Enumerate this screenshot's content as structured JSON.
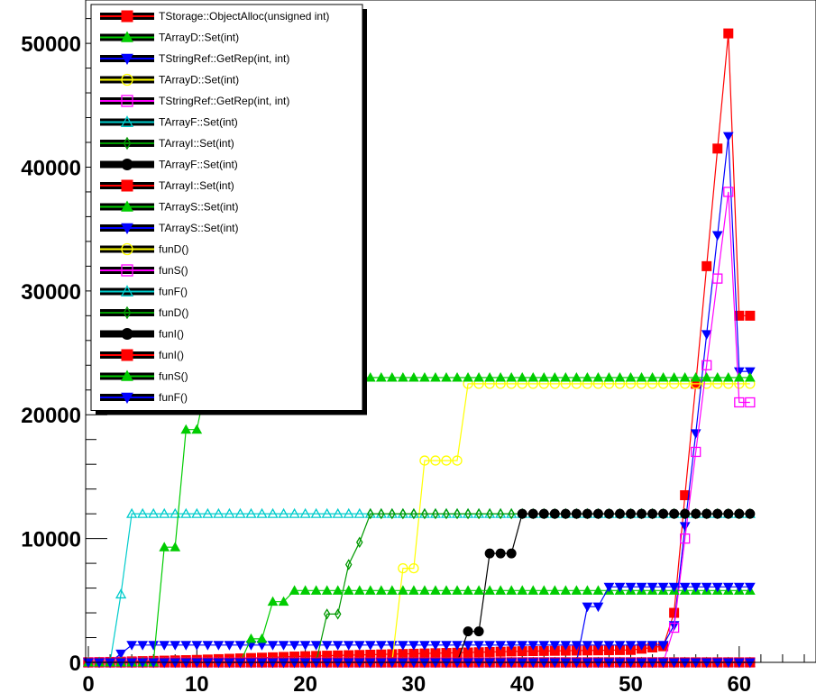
{
  "chart_data": {
    "type": "line",
    "title": "",
    "xlabel": "",
    "ylabel": "",
    "xlim": [
      0,
      66
    ],
    "ylim": [
      0,
      53500
    ],
    "x_ticks": [
      0,
      10,
      20,
      30,
      40,
      50,
      60
    ],
    "y_ticks": [
      0,
      10000,
      20000,
      30000,
      40000,
      50000
    ],
    "x_tick_labels": [
      "0",
      "10",
      "20",
      "30",
      "40",
      "50",
      "60"
    ],
    "y_tick_labels": [
      "0",
      "10000",
      "20000",
      "30000",
      "40000",
      "50000"
    ],
    "grid": false,
    "legend_position": "top-left",
    "series": [
      {
        "name": "TStorage::ObjectAlloc(unsigned int)",
        "color": "#ff0000",
        "marker": "square-filled",
        "points": [
          [
            0,
            0
          ],
          [
            10,
            200
          ],
          [
            20,
            500
          ],
          [
            30,
            700
          ],
          [
            40,
            900
          ],
          [
            50,
            1000
          ],
          [
            53,
            1300
          ],
          [
            54,
            4000
          ],
          [
            55,
            13500
          ],
          [
            56,
            22500
          ],
          [
            57,
            32000
          ],
          [
            58,
            41500
          ],
          [
            59,
            50800
          ],
          [
            60,
            28000
          ],
          [
            61,
            28000
          ]
        ]
      },
      {
        "name": "TArrayD::Set(int)",
        "color": "#00cc00",
        "marker": "triangle-up-filled",
        "points": [
          [
            0,
            0
          ],
          [
            61,
            0
          ]
        ]
      },
      {
        "name": "TStringRef::GetRep(int, int)",
        "color": "#0000ff",
        "marker": "triangle-down-filled",
        "points": [
          [
            0,
            0
          ],
          [
            2,
            0
          ],
          [
            3,
            700
          ],
          [
            4,
            1400
          ],
          [
            53,
            1400
          ],
          [
            54,
            3000
          ],
          [
            55,
            11000
          ],
          [
            56,
            18500
          ],
          [
            57,
            26500
          ],
          [
            58,
            34500
          ],
          [
            59,
            42500
          ],
          [
            60,
            23500
          ],
          [
            61,
            23500
          ]
        ]
      },
      {
        "name": "TArrayD::Set(int)",
        "color": "#ffff00",
        "marker": "circle-open",
        "points": [
          [
            0,
            0
          ],
          [
            28,
            0
          ],
          [
            29,
            7600
          ],
          [
            30,
            7600
          ],
          [
            31,
            16300
          ],
          [
            34,
            16300
          ],
          [
            35,
            22500
          ],
          [
            61,
            22500
          ]
        ]
      },
      {
        "name": "TStringRef::GetRep(int, int)",
        "color": "#ff00ff",
        "marker": "square-open",
        "points": [
          [
            0,
            0
          ],
          [
            53,
            0
          ],
          [
            54,
            2800
          ],
          [
            55,
            10000
          ],
          [
            56,
            17000
          ],
          [
            57,
            24000
          ],
          [
            58,
            31000
          ],
          [
            59,
            38000
          ],
          [
            60,
            21000
          ],
          [
            61,
            21000
          ]
        ]
      },
      {
        "name": "TArrayF::Set(int)",
        "color": "#00cccc",
        "marker": "triangle-up-open",
        "points": [
          [
            0,
            0
          ],
          [
            1,
            0
          ],
          [
            2,
            0
          ],
          [
            3,
            5500
          ],
          [
            4,
            12000
          ],
          [
            61,
            12000
          ]
        ]
      },
      {
        "name": "TArrayI::Set(int)",
        "color": "#009900",
        "marker": "diamond-open",
        "points": [
          [
            0,
            0
          ],
          [
            21,
            0
          ],
          [
            22,
            3900
          ],
          [
            23,
            3900
          ],
          [
            24,
            7900
          ],
          [
            25,
            9700
          ],
          [
            26,
            12000
          ],
          [
            61,
            12000
          ]
        ]
      },
      {
        "name": "TArrayF::Set(int)",
        "color": "#000000",
        "marker": "circle-filled",
        "points": [
          [
            0,
            0
          ],
          [
            34,
            0
          ],
          [
            35,
            2500
          ],
          [
            36,
            2500
          ],
          [
            37,
            8800
          ],
          [
            39,
            8800
          ],
          [
            40,
            12000
          ],
          [
            61,
            12000
          ]
        ]
      },
      {
        "name": "TArrayI::Set(int)",
        "color": "#ff0000",
        "marker": "square-filled",
        "points": [
          [
            0,
            0
          ],
          [
            61,
            0
          ]
        ]
      },
      {
        "name": "TArrayS::Set(int)",
        "color": "#00cc00",
        "marker": "triangle-up-filled",
        "points": [
          [
            0,
            0
          ],
          [
            14,
            0
          ],
          [
            15,
            1900
          ],
          [
            16,
            1900
          ],
          [
            17,
            4900
          ],
          [
            18,
            4900
          ],
          [
            19,
            5800
          ],
          [
            61,
            5800
          ]
        ]
      },
      {
        "name": "TArrayS::Set(int)",
        "color": "#0000ff",
        "marker": "triangle-down-filled",
        "points": [
          [
            0,
            0
          ],
          [
            45,
            0
          ],
          [
            46,
            4500
          ],
          [
            47,
            4500
          ],
          [
            48,
            6100
          ],
          [
            61,
            6100
          ]
        ]
      },
      {
        "name": "funD()",
        "color": "#ffff00",
        "marker": "circle-open",
        "points": [
          [
            0,
            0
          ],
          [
            61,
            0
          ]
        ]
      },
      {
        "name": "funS()",
        "color": "#ff00ff",
        "marker": "square-open",
        "points": [
          [
            0,
            0
          ],
          [
            61,
            0
          ]
        ]
      },
      {
        "name": "funF()",
        "color": "#00cccc",
        "marker": "triangle-up-open",
        "points": [
          [
            0,
            0
          ],
          [
            61,
            0
          ]
        ]
      },
      {
        "name": "funD()",
        "color": "#009900",
        "marker": "diamond-open",
        "points": [
          [
            0,
            0
          ],
          [
            61,
            0
          ]
        ]
      },
      {
        "name": "funI()",
        "color": "#000000",
        "marker": "circle-filled",
        "points": [
          [
            0,
            0
          ],
          [
            61,
            0
          ]
        ]
      },
      {
        "name": "funI()",
        "color": "#ff0000",
        "marker": "square-filled",
        "points": [
          [
            0,
            0
          ],
          [
            61,
            0
          ]
        ]
      },
      {
        "name": "funS()",
        "color": "#00cc00",
        "marker": "triangle-up-filled",
        "points": [
          [
            0,
            0
          ],
          [
            6,
            0
          ],
          [
            7,
            9300
          ],
          [
            8,
            9300
          ],
          [
            9,
            18800
          ],
          [
            10,
            18800
          ],
          [
            11,
            23000
          ],
          [
            61,
            23000
          ]
        ]
      },
      {
        "name": "funF()",
        "color": "#0000ff",
        "marker": "triangle-down-filled",
        "points": [
          [
            0,
            0
          ],
          [
            61,
            0
          ]
        ]
      }
    ]
  }
}
